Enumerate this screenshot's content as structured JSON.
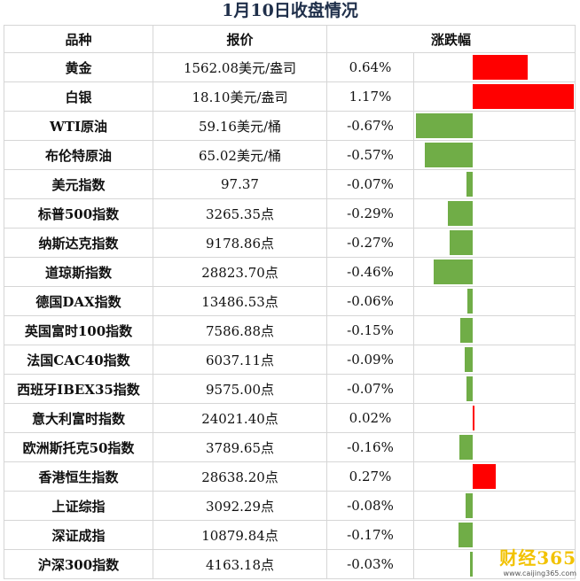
{
  "title": "1月10日收盘情况",
  "headers": {
    "name": "品种",
    "price": "报价",
    "change": "涨跌幅"
  },
  "colors": {
    "up": "#ff0000",
    "down": "#70ad47"
  },
  "chart_data": {
    "type": "bar",
    "categories": [
      "黄金",
      "白银",
      "WTI原油",
      "布伦特原油",
      "美元指数",
      "标普500指数",
      "纳斯达克指数",
      "道琼斯指数",
      "德国DAX指数",
      "英国富时100指数",
      "法国CAC40指数",
      "西班牙IBEX35指数",
      "意大利富时指数",
      "欧洲斯托克50指数",
      "香港恒生指数",
      "上证综指",
      "深证成指",
      "沪深300指数"
    ],
    "prices": [
      "1562.08美元/盎司",
      "18.10美元/盎司",
      "59.16美元/桶",
      "65.02美元/桶",
      "97.37",
      "3265.35点",
      "9178.86点",
      "28823.70点",
      "13486.53点",
      "7586.88点",
      "6037.11点",
      "9575.00点",
      "24021.40点",
      "3789.65点",
      "28638.20点",
      "3092.29点",
      "10879.84点",
      "4163.18点"
    ],
    "labels": [
      "0.64%",
      "1.17%",
      "-0.67%",
      "-0.57%",
      "-0.07%",
      "-0.29%",
      "-0.27%",
      "-0.46%",
      "-0.06%",
      "-0.15%",
      "-0.09%",
      "-0.07%",
      "0.02%",
      "-0.16%",
      "0.27%",
      "-0.08%",
      "-0.17%",
      "-0.03%"
    ],
    "values": [
      0.64,
      1.17,
      -0.67,
      -0.57,
      -0.07,
      -0.29,
      -0.27,
      -0.46,
      -0.06,
      -0.15,
      -0.09,
      -0.07,
      0.02,
      -0.16,
      0.27,
      -0.08,
      -0.17,
      -0.03
    ],
    "range": [
      -0.67,
      1.17
    ]
  },
  "watermark": {
    "main": "财经365",
    "sub": "www.caijing365.com"
  }
}
